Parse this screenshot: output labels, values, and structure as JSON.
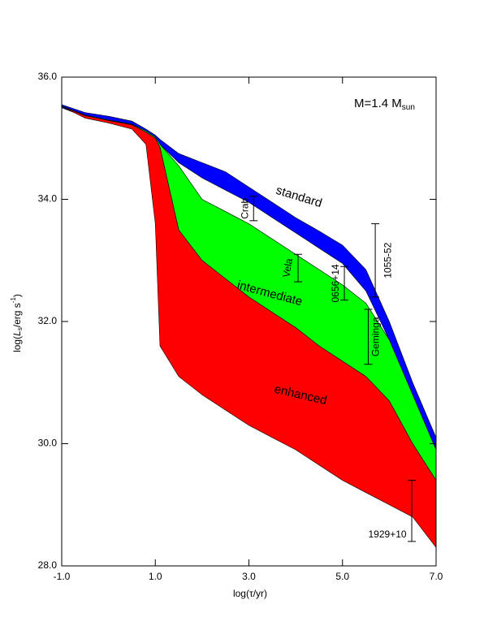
{
  "chart_data": {
    "type": "band",
    "xlabel": "log(τ/yr)",
    "ylabel": {
      "main": "log(",
      "var": "L",
      "sub": "s",
      "mid": "/erg s",
      "sup": "-1",
      "end": ")"
    },
    "annotation": {
      "text": "M=1.4 M",
      "sub": "sun"
    },
    "xlim": [
      -1,
      7
    ],
    "ylim": [
      28,
      36
    ],
    "xticks": [
      {
        "value": -1,
        "label": "-1.0"
      },
      {
        "value": 1,
        "label": "1.0"
      },
      {
        "value": 3,
        "label": "3.0"
      },
      {
        "value": 5,
        "label": "5.0"
      },
      {
        "value": 7,
        "label": "7.0"
      }
    ],
    "yticks": [
      {
        "value": 28,
        "label": "28.0"
      },
      {
        "value": 30,
        "label": "30.0"
      },
      {
        "value": 32,
        "label": "32.0"
      },
      {
        "value": 34,
        "label": "34.0"
      },
      {
        "value": 36,
        "label": "36.0"
      }
    ],
    "x": [
      -1,
      -0.5,
      0,
      0.5,
      0.8,
      1.0,
      1.1,
      1.5,
      2,
      2.5,
      3,
      3.5,
      4,
      4.5,
      5,
      5.5,
      6,
      6.5,
      7
    ],
    "series": [
      {
        "name": "standard",
        "color": "#0000ff",
        "upper": [
          35.55,
          35.42,
          35.36,
          35.28,
          35.15,
          35.05,
          34.98,
          34.75,
          34.6,
          34.45,
          34.2,
          33.95,
          33.7,
          33.48,
          33.25,
          32.85,
          32.0,
          31.0,
          30.1
        ],
        "lower": [
          35.5,
          35.35,
          35.27,
          35.2,
          35.1,
          35.0,
          34.9,
          34.6,
          34.35,
          34.15,
          33.95,
          33.7,
          33.45,
          33.2,
          32.95,
          32.5,
          31.7,
          30.7,
          29.6
        ]
      },
      {
        "name": "intermediate",
        "color": "#00ff00",
        "upper": [
          35.53,
          35.38,
          35.3,
          35.23,
          35.12,
          35.02,
          34.9,
          34.55,
          34.0,
          33.8,
          33.6,
          33.35,
          33.1,
          32.85,
          32.6,
          32.3,
          31.7,
          30.8,
          29.9
        ],
        "lower": [
          35.52,
          35.37,
          35.29,
          35.22,
          35.1,
          35.0,
          34.85,
          33.5,
          33.0,
          32.7,
          32.4,
          32.15,
          31.9,
          31.6,
          31.35,
          31.1,
          30.7,
          30.0,
          29.4
        ]
      },
      {
        "name": "enhanced",
        "color": "#ff0000",
        "upper": [
          35.52,
          35.37,
          35.29,
          35.22,
          35.1,
          35.0,
          34.85,
          33.5,
          33.0,
          32.7,
          32.4,
          32.15,
          31.9,
          31.6,
          31.35,
          31.1,
          30.7,
          30.0,
          29.4
        ],
        "lower": [
          35.52,
          35.33,
          35.25,
          35.15,
          34.9,
          33.6,
          31.6,
          31.1,
          30.8,
          30.55,
          30.3,
          30.1,
          29.9,
          29.65,
          29.4,
          29.2,
          29.0,
          28.8,
          28.3
        ]
      }
    ],
    "error_bars": [
      {
        "name": "Crab",
        "x": 3.1,
        "low": 33.65,
        "high": 34.05
      },
      {
        "name": "Vela",
        "x": 4.05,
        "low": 32.65,
        "high": 33.1
      },
      {
        "name": "0656+14",
        "x": 5.04,
        "low": 32.35,
        "high": 32.9
      },
      {
        "name": "Geminga",
        "x": 5.55,
        "low": 31.3,
        "high": 32.2
      },
      {
        "name": "1055-52",
        "x": 5.7,
        "low": 32.4,
        "high": 33.6
      },
      {
        "name": "1929+10",
        "x": 6.48,
        "low": 28.4,
        "high": 29.4
      }
    ]
  }
}
